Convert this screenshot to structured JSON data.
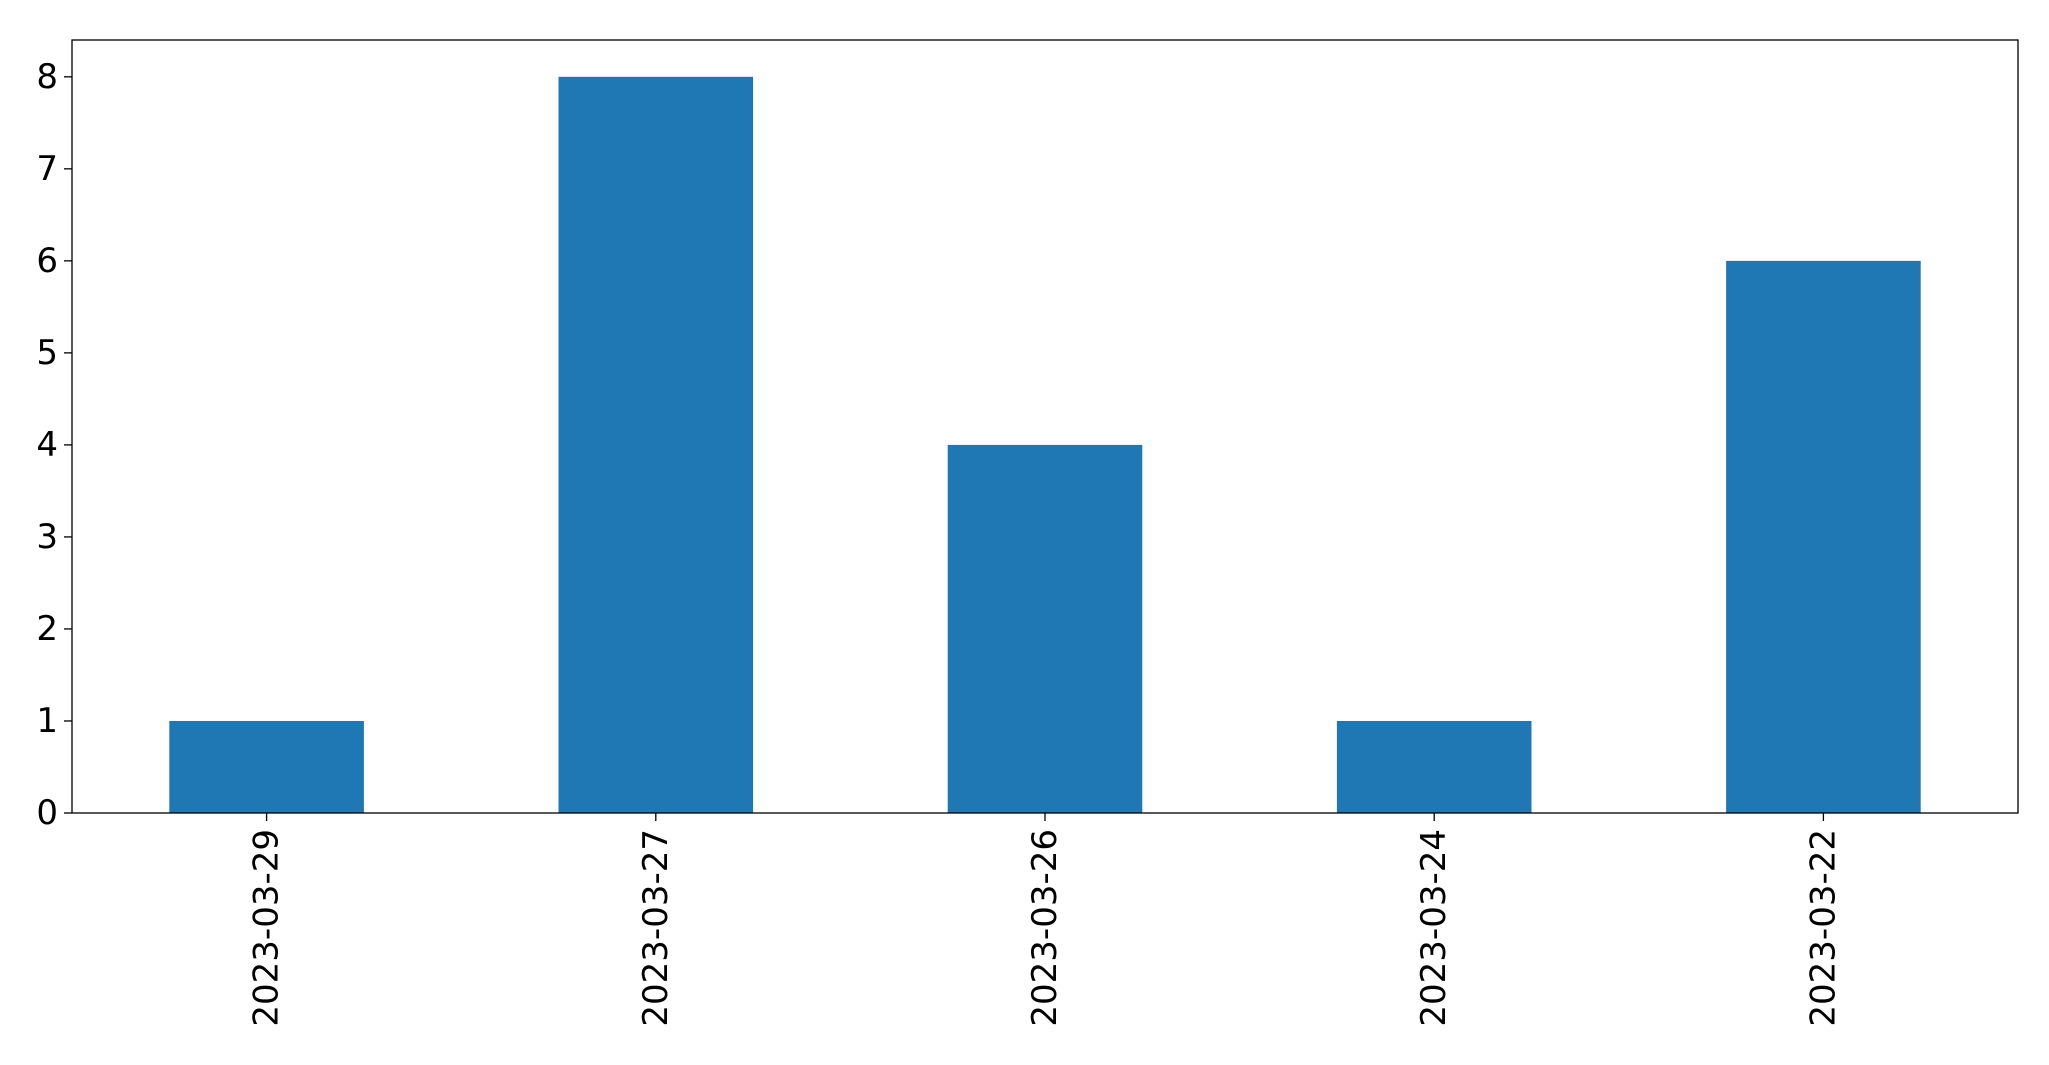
{
  "chart_data": {
    "type": "bar",
    "categories": [
      "2023-03-29",
      "2023-03-27",
      "2023-03-26",
      "2023-03-24",
      "2023-03-22"
    ],
    "values": [
      1,
      8,
      4,
      1,
      6
    ],
    "title": "",
    "xlabel": "",
    "ylabel": "",
    "ylim": [
      0,
      8.4
    ],
    "yticks": [
      0,
      1,
      2,
      3,
      4,
      5,
      6,
      7,
      8
    ],
    "grid": false,
    "colors": {
      "bar": "#1f77b4",
      "axis": "#000000",
      "background": "#ffffff"
    }
  }
}
